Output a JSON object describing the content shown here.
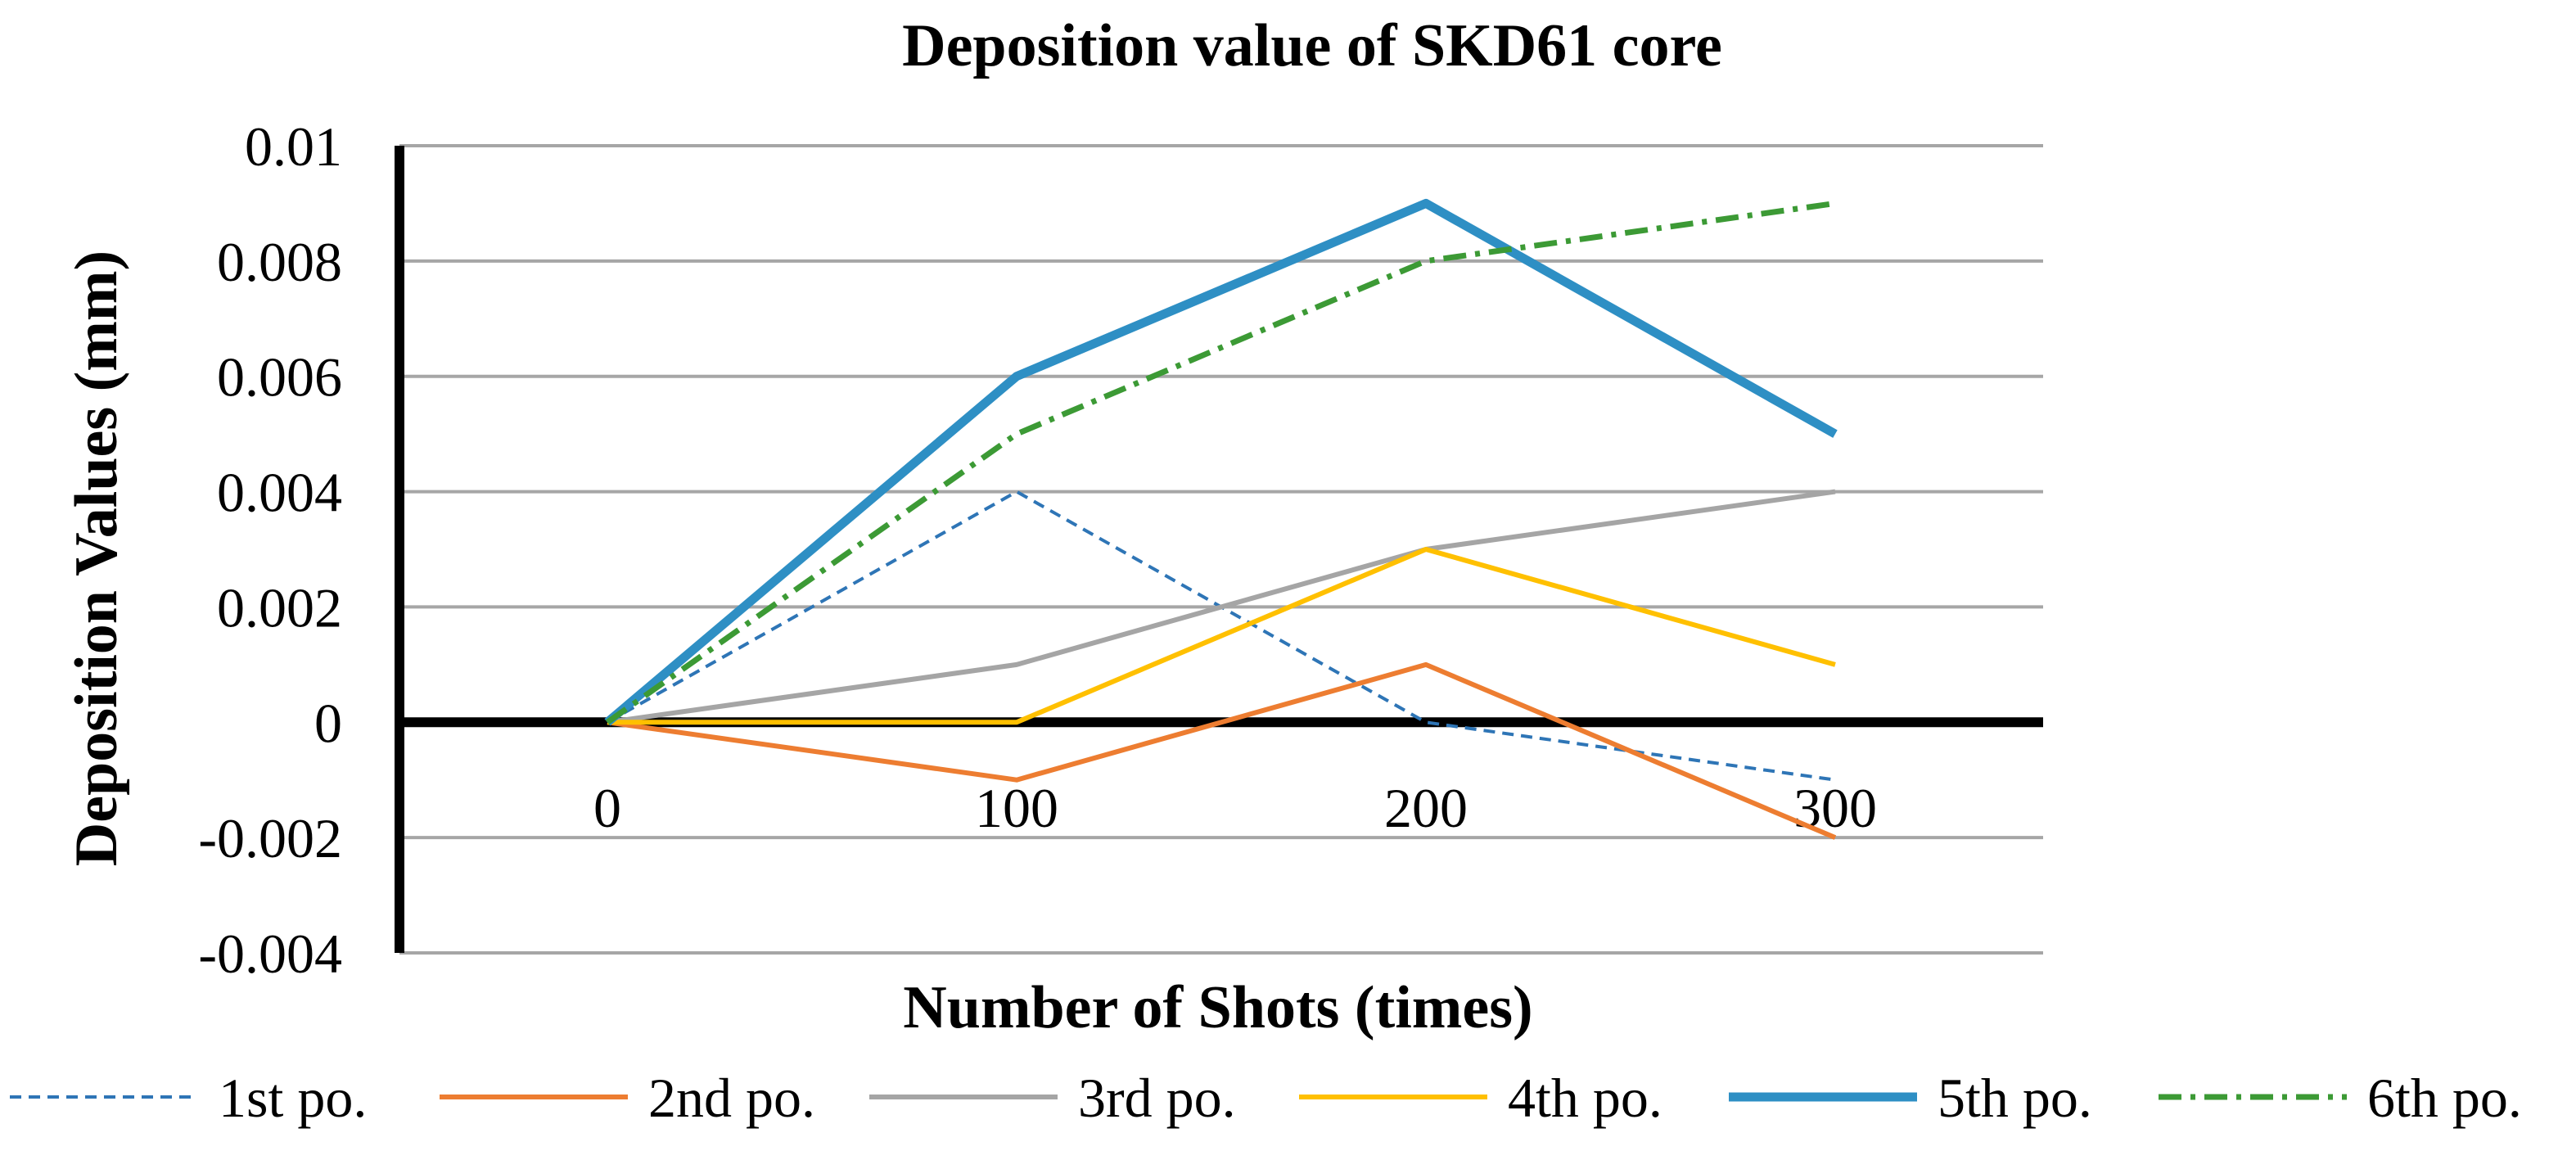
{
  "chart_data": {
    "type": "line",
    "title": "Deposition value of SKD61 core",
    "xlabel": "Number of Shots (times)",
    "ylabel": "Deposition Values (mm)",
    "categories": [
      "0",
      "100",
      "200",
      "300"
    ],
    "y_ticks": [
      "0.01",
      "0.008",
      "0.006",
      "0.004",
      "0.002",
      "0",
      "-0.002",
      "-0.004"
    ],
    "y_tick_values": [
      0.01,
      0.008,
      0.006,
      0.004,
      0.002,
      0,
      -0.002,
      -0.004
    ],
    "ylim": [
      -0.004,
      0.01
    ],
    "grid": true,
    "legend_position": "bottom",
    "series": [
      {
        "name": "1st po.",
        "values": [
          0,
          0.004,
          0,
          -0.001
        ],
        "color": "#2E75B6",
        "style": "dashed"
      },
      {
        "name": "2nd po.",
        "values": [
          0,
          -0.001,
          0.001,
          -0.002
        ],
        "color": "#ED7D31",
        "style": "solid"
      },
      {
        "name": "3rd po.",
        "values": [
          0,
          0.001,
          0.003,
          0.004
        ],
        "color": "#A5A5A5",
        "style": "solid"
      },
      {
        "name": "4th po.",
        "values": [
          0,
          0,
          0.003,
          0.001
        ],
        "color": "#FFC000",
        "style": "solid"
      },
      {
        "name": "5th po.",
        "values": [
          0,
          0.006,
          0.009,
          0.005
        ],
        "color": "#2E8FC4",
        "style": "thick"
      },
      {
        "name": "6th po.",
        "values": [
          0,
          0.005,
          0.008,
          0.009
        ],
        "color": "#3C9A35",
        "style": "dashdot"
      }
    ]
  }
}
